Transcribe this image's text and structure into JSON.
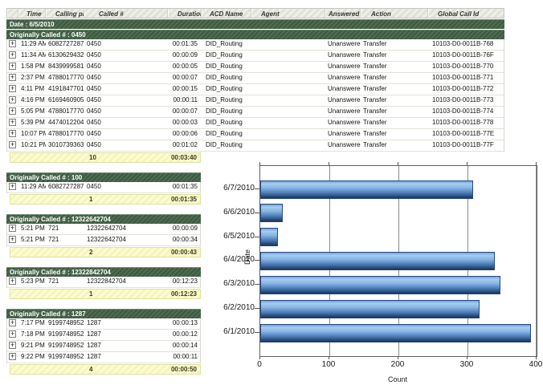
{
  "report": {
    "columns": [
      "Time",
      "Calling party #",
      "Called #",
      "Duration",
      "ACD Name",
      "Agent",
      "Answered",
      "Action",
      "Global Call Id"
    ],
    "date_band": "Date : 6/5/2010",
    "expand_icon": "+",
    "groups": [
      {
        "band": "Originally Called # : 0450",
        "wide": true,
        "rows": [
          {
            "time": "11:29 AM",
            "calling": "6082727287",
            "called": "0450",
            "duration": "00:01:35",
            "acd": "DID_Routing",
            "agent": "",
            "answered": "Unanswered",
            "action": "Transfer",
            "gcid": "10103-D0-0011B-768"
          },
          {
            "time": "11:34 AM",
            "calling": "6130629432",
            "called": "0450",
            "duration": "00:00:09",
            "acd": "DID_Routing",
            "agent": "",
            "answered": "Unanswered",
            "action": "Transfer",
            "gcid": "10103-D0-0011B-76F"
          },
          {
            "time": "1:58 PM",
            "calling": "8439999581",
            "called": "0450",
            "duration": "00:00:05",
            "acd": "DID_Routing",
            "agent": "",
            "answered": "Unanswered",
            "action": "Transfer",
            "gcid": "10103-D0-0011B-770"
          },
          {
            "time": "2:37 PM",
            "calling": "4788017770",
            "called": "0450",
            "duration": "00:00:07",
            "acd": "DID_Routing",
            "agent": "",
            "answered": "Unanswered",
            "action": "Transfer",
            "gcid": "10103-D0-0011B-771"
          },
          {
            "time": "4:11 PM",
            "calling": "4191847701",
            "called": "0450",
            "duration": "00:00:15",
            "acd": "DID_Routing",
            "agent": "",
            "answered": "Unanswered",
            "action": "Transfer",
            "gcid": "10103-D0-0011B-772"
          },
          {
            "time": "4:16 PM",
            "calling": "6169460905",
            "called": "0450",
            "duration": "00:00:11",
            "acd": "DID_Routing",
            "agent": "",
            "answered": "Unanswered",
            "action": "Transfer",
            "gcid": "10103-D0-0011B-773"
          },
          {
            "time": "5:05 PM",
            "calling": "4788017770",
            "called": "0450",
            "duration": "00:00:07",
            "acd": "DID_Routing",
            "agent": "",
            "answered": "Unanswered",
            "action": "Transfer",
            "gcid": "10103-D0-0011B-774"
          },
          {
            "time": "5:39 PM",
            "calling": "4474012204",
            "called": "0450",
            "duration": "00:00:03",
            "acd": "DID_Routing",
            "agent": "",
            "answered": "Unanswered",
            "action": "Transfer",
            "gcid": "10103-D0-0011B-778"
          },
          {
            "time": "10:07 PM",
            "calling": "4788017770",
            "called": "0450",
            "duration": "00:00:06",
            "acd": "DID_Routing",
            "agent": "",
            "answered": "Unanswered",
            "action": "Transfer",
            "gcid": "10103-D0-0011B-77E"
          },
          {
            "time": "10:21 PM",
            "calling": "3010739363",
            "called": "0450",
            "duration": "00:01:02",
            "acd": "DID_Routing",
            "agent": "",
            "answered": "Unanswered",
            "action": "Transfer",
            "gcid": "10103-D0-0011B-77F"
          }
        ],
        "summary": {
          "count": "10",
          "duration": "00:03:40"
        }
      },
      {
        "band": "Originally Called # : 100",
        "wide": false,
        "rows": [
          {
            "time": "11:29 AM",
            "calling": "6082727287",
            "called": "0450",
            "duration": "00:01:35"
          }
        ],
        "summary": {
          "count": "1",
          "duration": "00:01:35"
        }
      },
      {
        "band": "Originally Called # : 12322642704",
        "wide": false,
        "rows": [
          {
            "time": "5:21 PM",
            "calling": "721",
            "called": "12322642704",
            "duration": "00:00:09"
          },
          {
            "time": "5:21 PM",
            "calling": "721",
            "called": "12322642704",
            "duration": "00:00:34"
          }
        ],
        "summary": {
          "count": "2",
          "duration": "00:00:43"
        }
      },
      {
        "band": "Originally Called # : 12322842704",
        "wide": false,
        "rows": [
          {
            "time": "5:23 PM",
            "calling": "721",
            "called": "12322842704",
            "duration": "00:12:23"
          }
        ],
        "summary": {
          "count": "1",
          "duration": "00:12:23"
        }
      },
      {
        "band": "Originally Called # : 1287",
        "wide": false,
        "rows": [
          {
            "time": "7:17 PM",
            "calling": "9199748952",
            "called": "1287",
            "duration": "00:00:13"
          },
          {
            "time": "7:18 PM",
            "calling": "9199748952",
            "called": "1287",
            "duration": "00:00:12"
          },
          {
            "time": "9:21 PM",
            "calling": "9199748952",
            "called": "1287",
            "duration": "00:00:14"
          },
          {
            "time": "9:22 PM",
            "calling": "9199748952",
            "called": "1287",
            "duration": "00:00:11"
          }
        ],
        "summary": {
          "count": "4",
          "duration": "00:00:50"
        }
      }
    ]
  },
  "chart_data": {
    "type": "bar",
    "orientation": "horizontal",
    "title": "",
    "categories": [
      "6/7/2010",
      "6/6/2010",
      "6/5/2010",
      "6/4/2010",
      "6/3/2010",
      "6/2/2010",
      "6/1/2010"
    ],
    "values": [
      308,
      33,
      26,
      340,
      348,
      318,
      392
    ],
    "xlabel": "Count",
    "ylabel": "Date",
    "xlim": [
      0,
      400
    ],
    "xticks": [
      0,
      100,
      200,
      300,
      400
    ],
    "grid": true,
    "legend": false
  },
  "colors": {
    "band_green": "#46624a",
    "summary_yellow": "#f8f8c4",
    "bar_blue_light": "#9cc4ef",
    "bar_blue_dark": "#1c3b6b",
    "grid_gray": "#8c8c8c"
  }
}
